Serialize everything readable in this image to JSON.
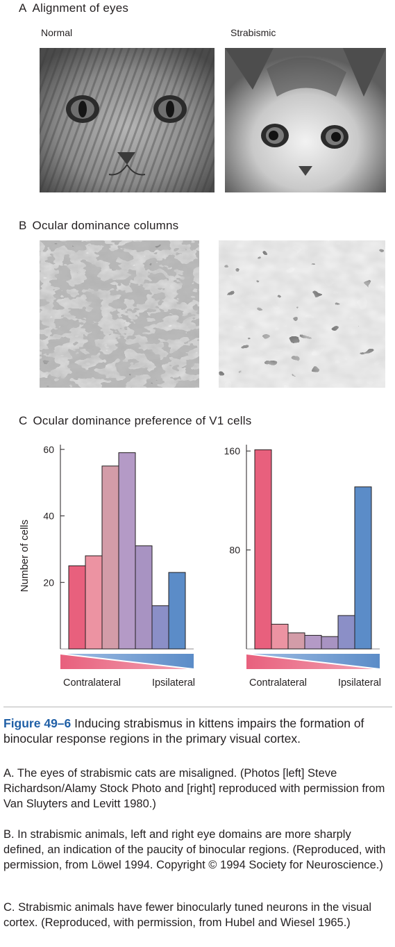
{
  "panel_a": {
    "letter": "A",
    "title": "Alignment of eyes",
    "left_label": "Normal",
    "right_label": "Strabismic"
  },
  "panel_b": {
    "letter": "B",
    "title": "Ocular dominance columns"
  },
  "panel_c": {
    "letter": "C",
    "title": "Ocular dominance preference of V1 cells",
    "ylabel": "Number of cells",
    "left_end_label": "Contralateral",
    "right_end_label": "Ipsilateral"
  },
  "bar_colors": [
    "#e8607d",
    "#ec93a2",
    "#d39ca8",
    "#b49ac6",
    "#a893c2",
    "#8b8fc7",
    "#5b8cc8"
  ],
  "chart_data": [
    {
      "type": "bar",
      "name": "normal",
      "categories": [
        "1",
        "2",
        "3",
        "4",
        "5",
        "6",
        "7"
      ],
      "values": [
        25,
        28,
        55,
        59,
        31,
        13,
        23
      ],
      "ylim": [
        0,
        61
      ],
      "yticks": [
        20,
        40,
        60
      ],
      "ylabel": "Number of cells",
      "xlabel_left": "Contralateral",
      "xlabel_right": "Ipsilateral"
    },
    {
      "type": "bar",
      "name": "strabismic",
      "categories": [
        "1",
        "2",
        "3",
        "4",
        "5",
        "6",
        "7"
      ],
      "values": [
        161,
        20,
        13,
        11,
        10,
        27,
        131
      ],
      "ylim": [
        0,
        164
      ],
      "yticks": [
        80,
        160
      ],
      "xlabel_left": "Contralateral",
      "xlabel_right": "Ipsilateral"
    }
  ],
  "caption": {
    "figure_label": "Figure 49–6",
    "title": "Inducing strabismus in kittens impairs the formation of binocular response regions in the primary visual cortex.",
    "a": "A. The eyes of strabismic cats are misaligned. (Photos [left] Steve Richardson/Alamy Stock Photo and [right] reproduced with permission from Van Sluyters and Levitt 1980.)",
    "b": "B. In strabismic animals, left and right eye domains are more sharply defined, an indication of the paucity of binocular regions. (Reproduced, with permission, from Löwel 1994. Copyright © 1994 Society for Neuroscience.)",
    "c": "C. Strabismic animals have fewer binocularly tuned neurons in the visual cortex. (Reproduced, with permission, from Hubel and Wiesel 1965.)"
  }
}
